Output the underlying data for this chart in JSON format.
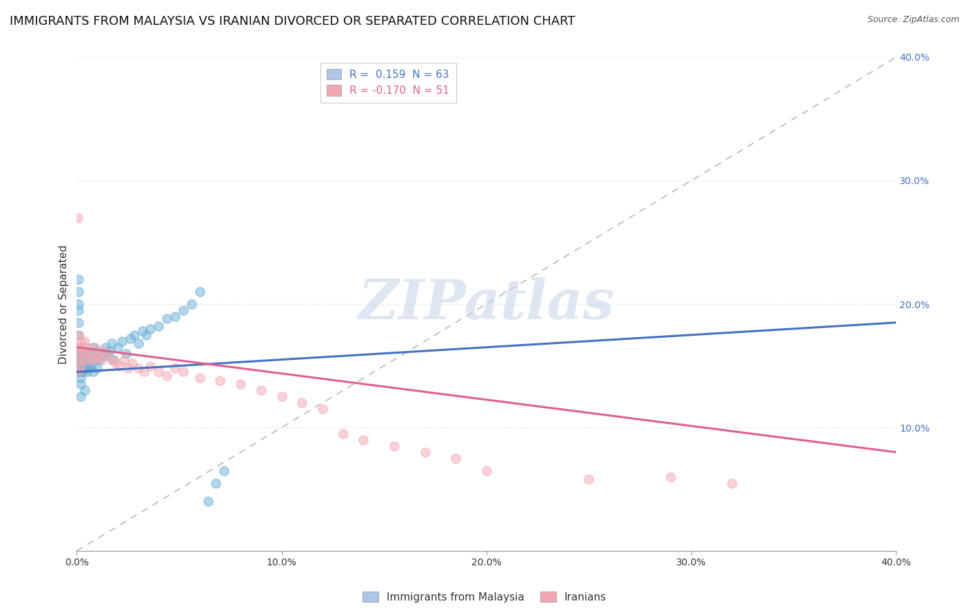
{
  "title": "IMMIGRANTS FROM MALAYSIA VS IRANIAN DIVORCED OR SEPARATED CORRELATION CHART",
  "source": "Source: ZipAtlas.com",
  "ylabel": "Divorced or Separated",
  "watermark": "ZIPatlas",
  "xlim": [
    0.0,
    0.4
  ],
  "ylim": [
    0.0,
    0.4
  ],
  "xticks": [
    0.0,
    0.1,
    0.2,
    0.3,
    0.4
  ],
  "yticks_right": [
    0.1,
    0.2,
    0.3,
    0.4
  ],
  "xtick_labels": [
    "0.0%",
    "10.0%",
    "20.0%",
    "30.0%",
    "40.0%"
  ],
  "ytick_labels_right": [
    "10.0%",
    "20.0%",
    "30.0%",
    "40.0%"
  ],
  "legend1_label": "R =  0.159  N = 63",
  "legend2_label": "R = -0.170  N = 51",
  "legend1_color": "#aec6e8",
  "legend2_color": "#f4a7b0",
  "series1_color": "#6aaed6",
  "series2_color": "#f4a7b0",
  "trend1_color": "#4472c4",
  "trend2_color": "#e06090",
  "trend_dash_color": "#b8b8b8",
  "background_color": "#ffffff",
  "grid_color": "#d8d8d8",
  "title_fontsize": 13,
  "axis_label_fontsize": 11,
  "tick_fontsize": 10,
  "legend_fontsize": 11,
  "watermark_color": "#c8d8e8",
  "series1_x": [
    0.0005,
    0.0008,
    0.001,
    0.001,
    0.001,
    0.001,
    0.001,
    0.001,
    0.001,
    0.001,
    0.0015,
    0.002,
    0.002,
    0.002,
    0.002,
    0.002,
    0.002,
    0.002,
    0.003,
    0.003,
    0.003,
    0.003,
    0.004,
    0.004,
    0.004,
    0.005,
    0.005,
    0.005,
    0.006,
    0.006,
    0.007,
    0.007,
    0.008,
    0.008,
    0.009,
    0.01,
    0.01,
    0.011,
    0.012,
    0.013,
    0.014,
    0.015,
    0.016,
    0.017,
    0.018,
    0.02,
    0.022,
    0.024,
    0.026,
    0.028,
    0.03,
    0.032,
    0.034,
    0.036,
    0.04,
    0.044,
    0.048,
    0.052,
    0.056,
    0.06,
    0.064,
    0.068,
    0.072
  ],
  "series1_y": [
    0.155,
    0.145,
    0.22,
    0.21,
    0.2,
    0.195,
    0.185,
    0.175,
    0.165,
    0.16,
    0.15,
    0.15,
    0.145,
    0.14,
    0.135,
    0.155,
    0.16,
    0.125,
    0.15,
    0.145,
    0.155,
    0.16,
    0.148,
    0.152,
    0.13,
    0.145,
    0.15,
    0.16,
    0.148,
    0.155,
    0.15,
    0.16,
    0.145,
    0.165,
    0.155,
    0.148,
    0.162,
    0.155,
    0.158,
    0.16,
    0.165,
    0.158,
    0.162,
    0.168,
    0.155,
    0.165,
    0.17,
    0.16,
    0.172,
    0.175,
    0.168,
    0.178,
    0.175,
    0.18,
    0.182,
    0.188,
    0.19,
    0.195,
    0.2,
    0.21,
    0.04,
    0.055,
    0.065
  ],
  "series2_x": [
    0.0005,
    0.001,
    0.001,
    0.001,
    0.001,
    0.002,
    0.002,
    0.002,
    0.003,
    0.003,
    0.004,
    0.004,
    0.005,
    0.006,
    0.007,
    0.008,
    0.009,
    0.01,
    0.011,
    0.012,
    0.013,
    0.015,
    0.017,
    0.019,
    0.021,
    0.023,
    0.025,
    0.027,
    0.03,
    0.033,
    0.036,
    0.04,
    0.044,
    0.048,
    0.052,
    0.06,
    0.07,
    0.08,
    0.09,
    0.1,
    0.11,
    0.12,
    0.13,
    0.14,
    0.155,
    0.17,
    0.185,
    0.2,
    0.25,
    0.29,
    0.32
  ],
  "series2_y": [
    0.27,
    0.155,
    0.145,
    0.165,
    0.175,
    0.16,
    0.15,
    0.17,
    0.155,
    0.165,
    0.16,
    0.17,
    0.165,
    0.155,
    0.16,
    0.155,
    0.165,
    0.158,
    0.16,
    0.155,
    0.162,
    0.158,
    0.155,
    0.152,
    0.15,
    0.155,
    0.148,
    0.152,
    0.148,
    0.145,
    0.15,
    0.145,
    0.142,
    0.148,
    0.145,
    0.14,
    0.138,
    0.135,
    0.13,
    0.125,
    0.12,
    0.115,
    0.095,
    0.09,
    0.085,
    0.08,
    0.075,
    0.065,
    0.058,
    0.06,
    0.055
  ],
  "trend1_x": [
    0.0,
    0.4
  ],
  "trend1_y": [
    0.145,
    0.185
  ],
  "trend2_x": [
    0.0,
    0.4
  ],
  "trend2_y": [
    0.165,
    0.08
  ]
}
